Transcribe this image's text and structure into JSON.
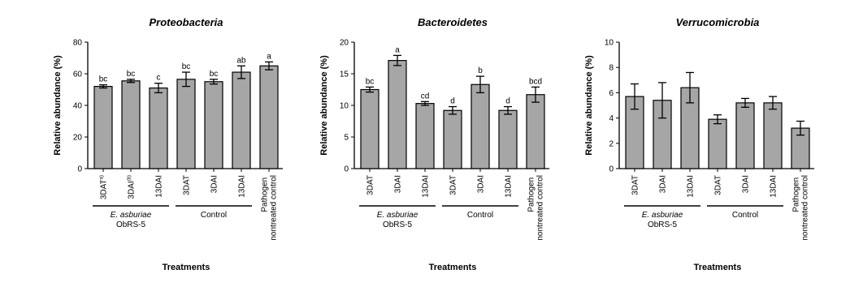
{
  "chart_data": [
    {
      "type": "bar",
      "title": "Proteobacteria",
      "ylabel": "Relative abundance (%)",
      "xlabel": "Treatments",
      "categories": [
        "3DAT",
        "3DAI",
        "13DAI",
        "3DAT",
        "3DAI",
        "13DAI",
        "Pathogen nontreated control"
      ],
      "category_notes": [
        "a)",
        "(b)",
        null,
        null,
        null,
        null,
        null
      ],
      "values": [
        52,
        55.5,
        51,
        56.5,
        55,
        61,
        65
      ],
      "errors": [
        1,
        1,
        3,
        4.5,
        1.5,
        4,
        2.5
      ],
      "letters": [
        "bc",
        "bc",
        "c",
        "bc",
        "bc",
        "ab",
        "a"
      ],
      "groups": [
        {
          "label": "E. asburiae",
          "sublabel": "ObRS-5",
          "count": 3
        },
        {
          "label": "Control",
          "count": 3
        }
      ],
      "color": "#a6a6a6",
      "ylim": [
        0,
        80
      ],
      "yticks": [
        0,
        20,
        40,
        60,
        80
      ]
    },
    {
      "type": "bar",
      "title": "Bacteroidetes",
      "ylabel": "Relative abundance (%)",
      "xlabel": "Treatments",
      "categories": [
        "3DAT",
        "3DAI",
        "13DAI",
        "3DAT",
        "3DAI",
        "13DAI",
        "Pathogen nontreated control"
      ],
      "values": [
        12.5,
        17.1,
        10.3,
        9.2,
        13.3,
        9.2,
        11.7
      ],
      "errors": [
        0.4,
        0.8,
        0.3,
        0.6,
        1.3,
        0.6,
        1.2
      ],
      "letters": [
        "bc",
        "a",
        "cd",
        "d",
        "b",
        "d",
        "bcd"
      ],
      "groups": [
        {
          "label": "E. asburiae",
          "sublabel": "ObRS-5",
          "count": 3
        },
        {
          "label": "Control",
          "count": 3
        }
      ],
      "color": "#a6a6a6",
      "ylim": [
        0,
        20
      ],
      "yticks": [
        0,
        5,
        10,
        15,
        20
      ]
    },
    {
      "type": "bar",
      "title": "Verrucomicrobia",
      "ylabel": "Relative abundance (%)",
      "xlabel": "Treatments",
      "categories": [
        "3DAT",
        "3DAI",
        "13DAI",
        "3DAT",
        "3DAI",
        "13DAI",
        "Pathogen nontreated control"
      ],
      "values": [
        5.7,
        5.4,
        6.4,
        3.9,
        5.2,
        5.2,
        3.2
      ],
      "errors": [
        1.0,
        1.4,
        1.2,
        0.35,
        0.35,
        0.5,
        0.55
      ],
      "groups": [
        {
          "label": "E. asburiae",
          "sublabel": "ObRS-5",
          "count": 3
        },
        {
          "label": "Control",
          "count": 3
        }
      ],
      "color": "#a6a6a6",
      "ylim": [
        0,
        10
      ],
      "yticks": [
        0,
        2,
        4,
        6,
        8,
        10
      ]
    }
  ]
}
